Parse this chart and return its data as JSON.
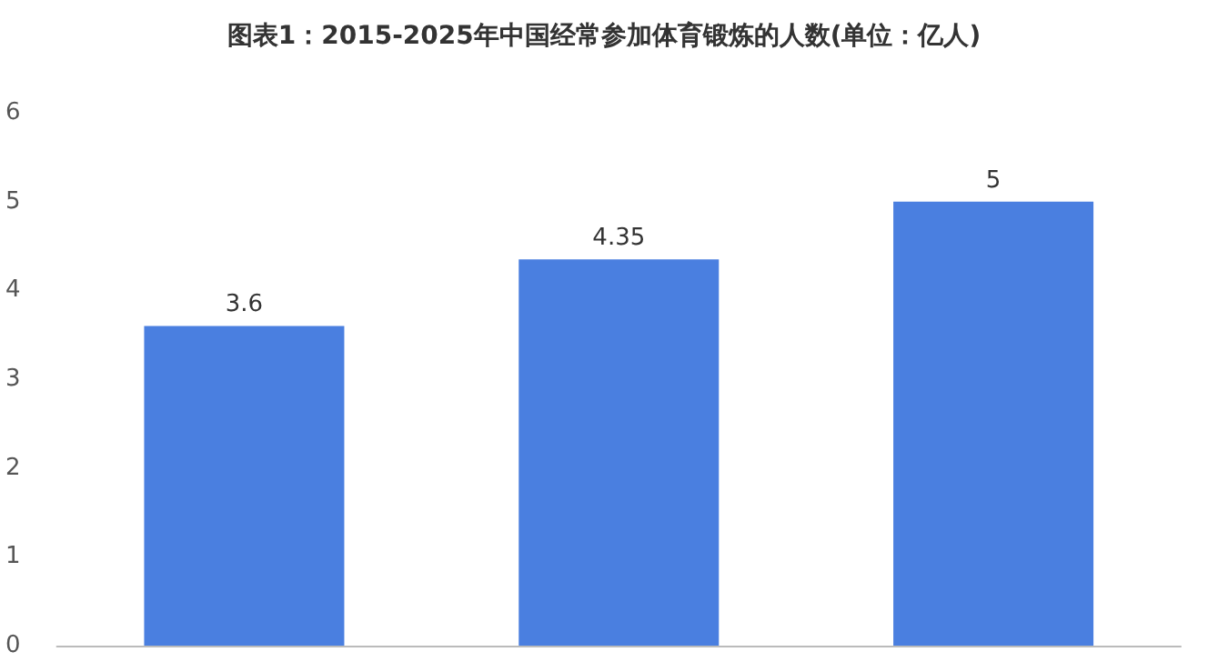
{
  "chart_data": {
    "type": "bar",
    "title": "图表1：2015-2025年中国经常参加体育锻炼的人数(单位：亿人)",
    "categories": [
      null,
      null,
      null
    ],
    "values": [
      3.6,
      4.35,
      5
    ],
    "color": "#4a7fe0",
    "ylim": [
      0,
      6
    ],
    "yticks": [
      0,
      1,
      2,
      3,
      4,
      5,
      6
    ],
    "grid": false,
    "data_labels": true
  }
}
